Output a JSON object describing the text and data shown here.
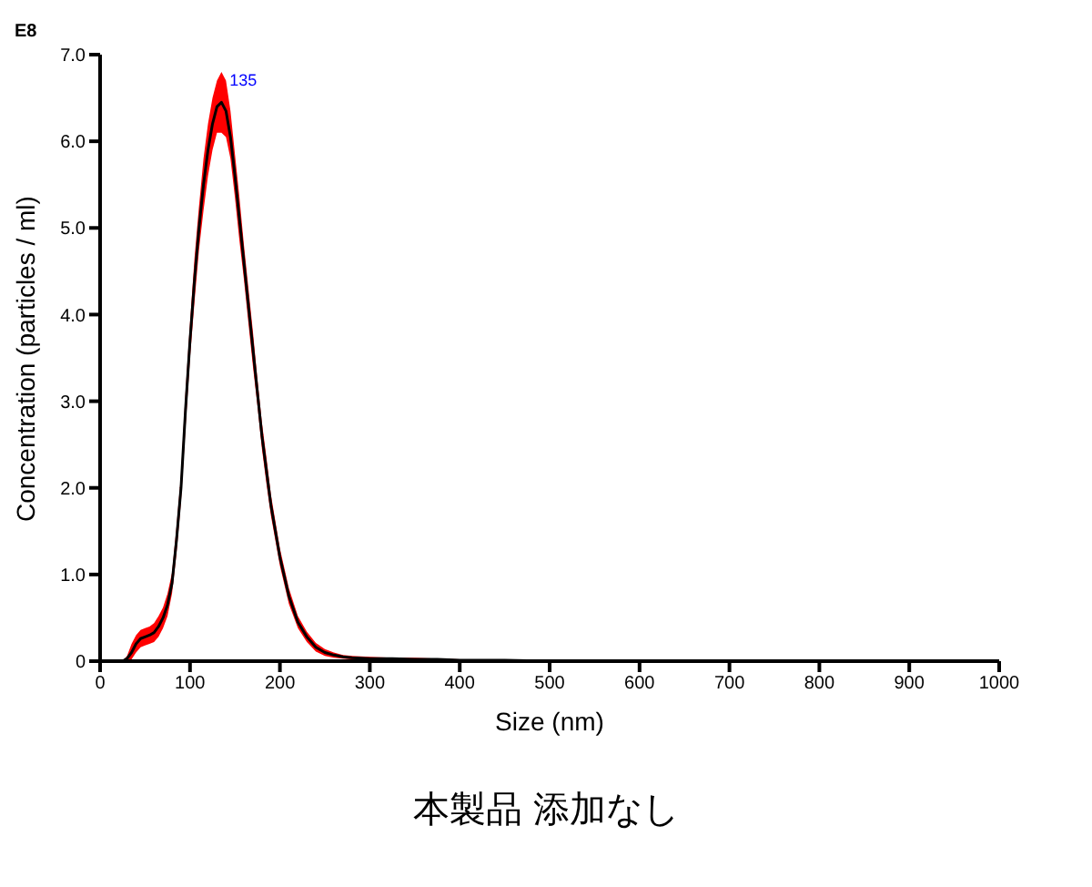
{
  "chart_data": {
    "type": "line",
    "title": "本製品 添加なし",
    "xlabel": "Size (nm)",
    "ylabel": "Concentration (particles / ml)",
    "annotations": [
      "E8",
      {
        "text": "135",
        "x": 135,
        "y": 6.45
      }
    ],
    "x": [
      0,
      10,
      20,
      25,
      30,
      35,
      40,
      45,
      50,
      55,
      60,
      65,
      70,
      75,
      80,
      85,
      90,
      95,
      100,
      105,
      110,
      115,
      120,
      125,
      130,
      135,
      140,
      145,
      150,
      155,
      160,
      165,
      170,
      175,
      180,
      185,
      190,
      200,
      210,
      220,
      230,
      240,
      250,
      260,
      270,
      280,
      300,
      325,
      350,
      375,
      400,
      450,
      500,
      600,
      700,
      800,
      900,
      1000
    ],
    "series": [
      {
        "color": "#000000",
        "values": [
          0,
          0,
          0,
          0,
          0.03,
          0.1,
          0.2,
          0.26,
          0.28,
          0.3,
          0.33,
          0.4,
          0.5,
          0.65,
          0.9,
          1.4,
          2.0,
          2.9,
          3.7,
          4.4,
          5.0,
          5.5,
          5.9,
          6.2,
          6.4,
          6.45,
          6.35,
          6.05,
          5.6,
          5.1,
          4.6,
          4.1,
          3.6,
          3.1,
          2.6,
          2.2,
          1.8,
          1.2,
          0.75,
          0.45,
          0.28,
          0.16,
          0.1,
          0.07,
          0.05,
          0.04,
          0.03,
          0.03,
          0.02,
          0.02,
          0.01,
          0.01,
          0,
          0,
          0,
          0,
          0,
          0
        ],
        "lower": [
          0,
          0,
          0,
          0,
          0,
          0.02,
          0.1,
          0.16,
          0.18,
          0.2,
          0.22,
          0.28,
          0.38,
          0.52,
          0.78,
          1.25,
          1.85,
          2.7,
          3.5,
          4.15,
          4.75,
          5.2,
          5.6,
          5.9,
          6.1,
          6.1,
          6.05,
          5.8,
          5.35,
          4.85,
          4.4,
          3.9,
          3.4,
          2.95,
          2.45,
          2.05,
          1.68,
          1.1,
          0.66,
          0.38,
          0.22,
          0.11,
          0.06,
          0.04,
          0.03,
          0.02,
          0.01,
          0.01,
          0.01,
          0,
          0,
          0,
          0,
          0,
          0,
          0,
          0,
          0
        ],
        "upper": [
          0,
          0,
          0,
          0,
          0.06,
          0.2,
          0.3,
          0.36,
          0.38,
          0.4,
          0.44,
          0.52,
          0.62,
          0.78,
          1.02,
          1.55,
          2.15,
          3.1,
          3.9,
          4.65,
          5.25,
          5.8,
          6.2,
          6.5,
          6.7,
          6.8,
          6.7,
          6.35,
          5.85,
          5.35,
          4.8,
          4.3,
          3.8,
          3.25,
          2.75,
          2.35,
          1.92,
          1.3,
          0.84,
          0.52,
          0.34,
          0.21,
          0.14,
          0.1,
          0.07,
          0.06,
          0.05,
          0.04,
          0.04,
          0.03,
          0.02,
          0.01,
          0.01,
          0,
          0,
          0,
          0,
          0
        ]
      }
    ],
    "xlim": [
      0,
      1000
    ],
    "xticks": [
      0,
      100,
      200,
      300,
      400,
      500,
      600,
      700,
      800,
      900,
      1000
    ],
    "ylim": [
      0,
      7
    ],
    "yticks": [
      0,
      {
        "value": 1,
        "label": "1.0"
      },
      {
        "value": 2,
        "label": "2.0"
      },
      {
        "value": 3,
        "label": "3.0"
      },
      {
        "value": 4,
        "label": "4.0"
      },
      {
        "value": 5,
        "label": "5.0"
      },
      {
        "value": 6,
        "label": "6.0"
      },
      {
        "value": 7,
        "label": "7.0"
      }
    ],
    "grid": false,
    "legend": false,
    "marker": "none",
    "line_style": "solid"
  }
}
